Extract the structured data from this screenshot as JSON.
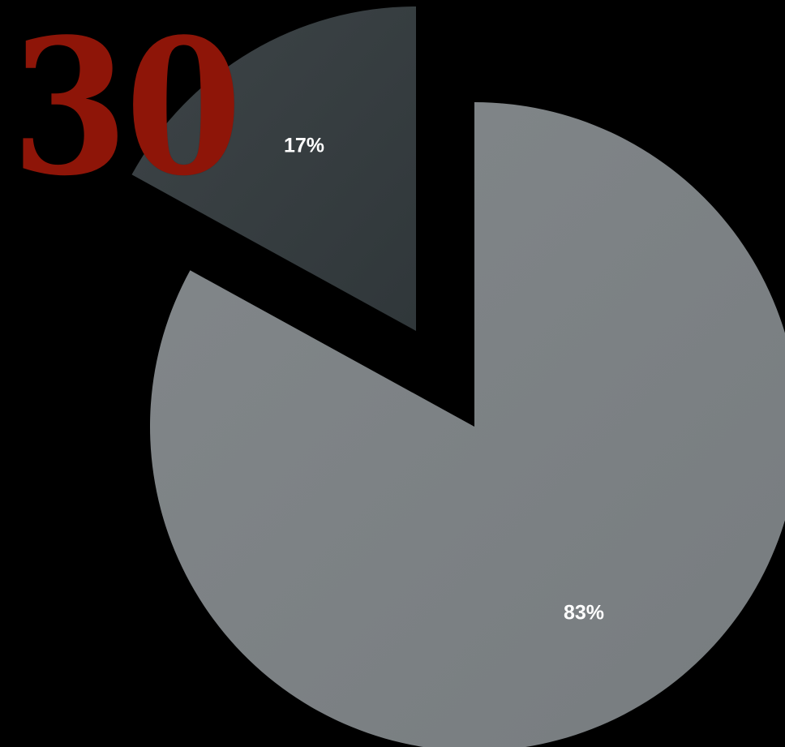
{
  "big_number": "30",
  "colors": {
    "background": "#000000",
    "number": "#8e1508",
    "slice_small": "#363d40",
    "slice_large": "#7c8184"
  },
  "chart_data": {
    "type": "pie",
    "exploded": true,
    "slices": [
      {
        "value": 17,
        "label": "17%",
        "color": "#363d40"
      },
      {
        "value": 83,
        "label": "83%",
        "color": "#7c8184"
      }
    ]
  }
}
